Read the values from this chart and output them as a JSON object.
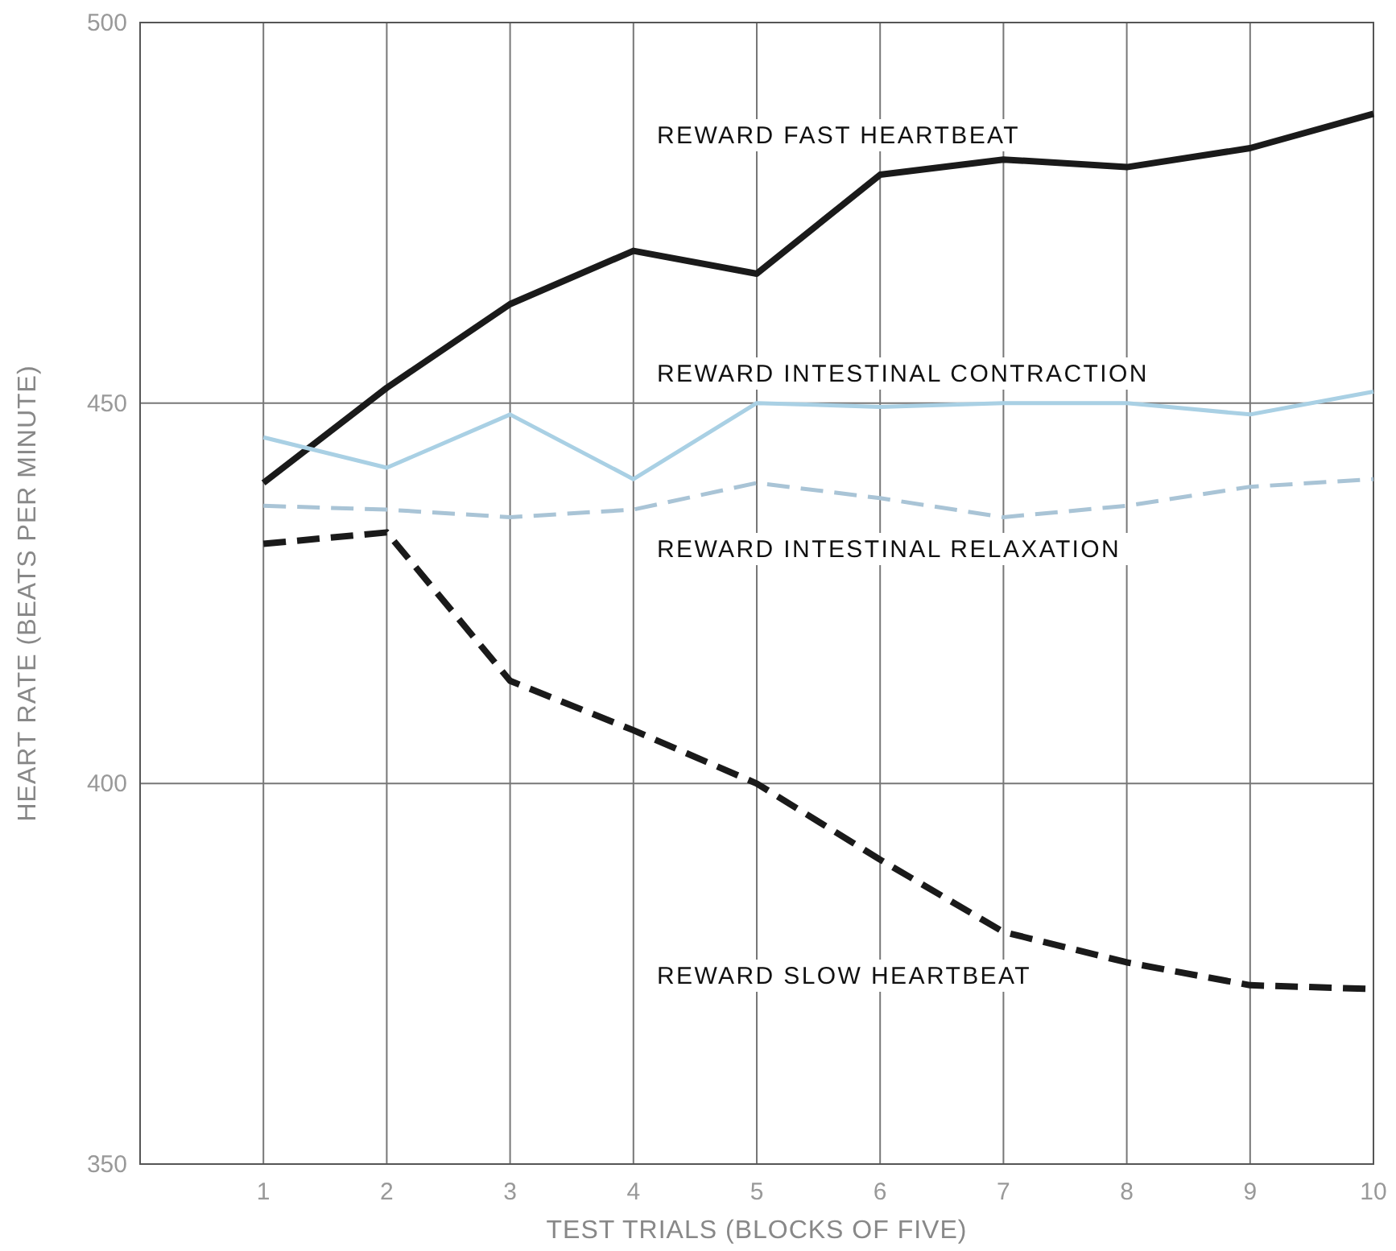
{
  "chart_data": {
    "type": "line",
    "xlabel": "TEST TRIALS (BLOCKS OF FIVE)",
    "ylabel": "HEART RATE (BEATS PER MINUTE)",
    "x": [
      1,
      2,
      3,
      4,
      5,
      6,
      7,
      8,
      9,
      10
    ],
    "xlim": [
      0,
      10
    ],
    "xticks": [
      1,
      2,
      3,
      4,
      5,
      6,
      7,
      8,
      9,
      10
    ],
    "ylim": [
      350,
      500
    ],
    "yticks": [
      350,
      400,
      450,
      500
    ],
    "grid": true,
    "legend": false,
    "marker": "none",
    "series": [
      {
        "name": "REWARD FAST HEARTBEAT",
        "color": "#1a1a1a",
        "line_style": "solid",
        "values": [
          439.5,
          452,
          463,
          470,
          467,
          480,
          482,
          481,
          483.5,
          488
        ]
      },
      {
        "name": "REWARD INTESTINAL CONTRACTION",
        "color": "#a9d0e4",
        "line_style": "solid",
        "values": [
          445.5,
          441.5,
          448.5,
          440,
          450,
          449.5,
          450,
          450,
          448.5,
          451.5
        ]
      },
      {
        "name": "REWARD INTESTINAL RELAXATION",
        "color": "#a9c4d6",
        "line_style": "dashed",
        "values": [
          436.5,
          436,
          435,
          436,
          439.5,
          437.5,
          435,
          436.5,
          439,
          440
        ]
      },
      {
        "name": "REWARD SLOW HEARTBEAT",
        "color": "#1a1a1a",
        "line_style": "dashed",
        "values": [
          431.5,
          433,
          413.5,
          407,
          400,
          390,
          380.5,
          376.5,
          373.5,
          373
        ]
      }
    ]
  }
}
